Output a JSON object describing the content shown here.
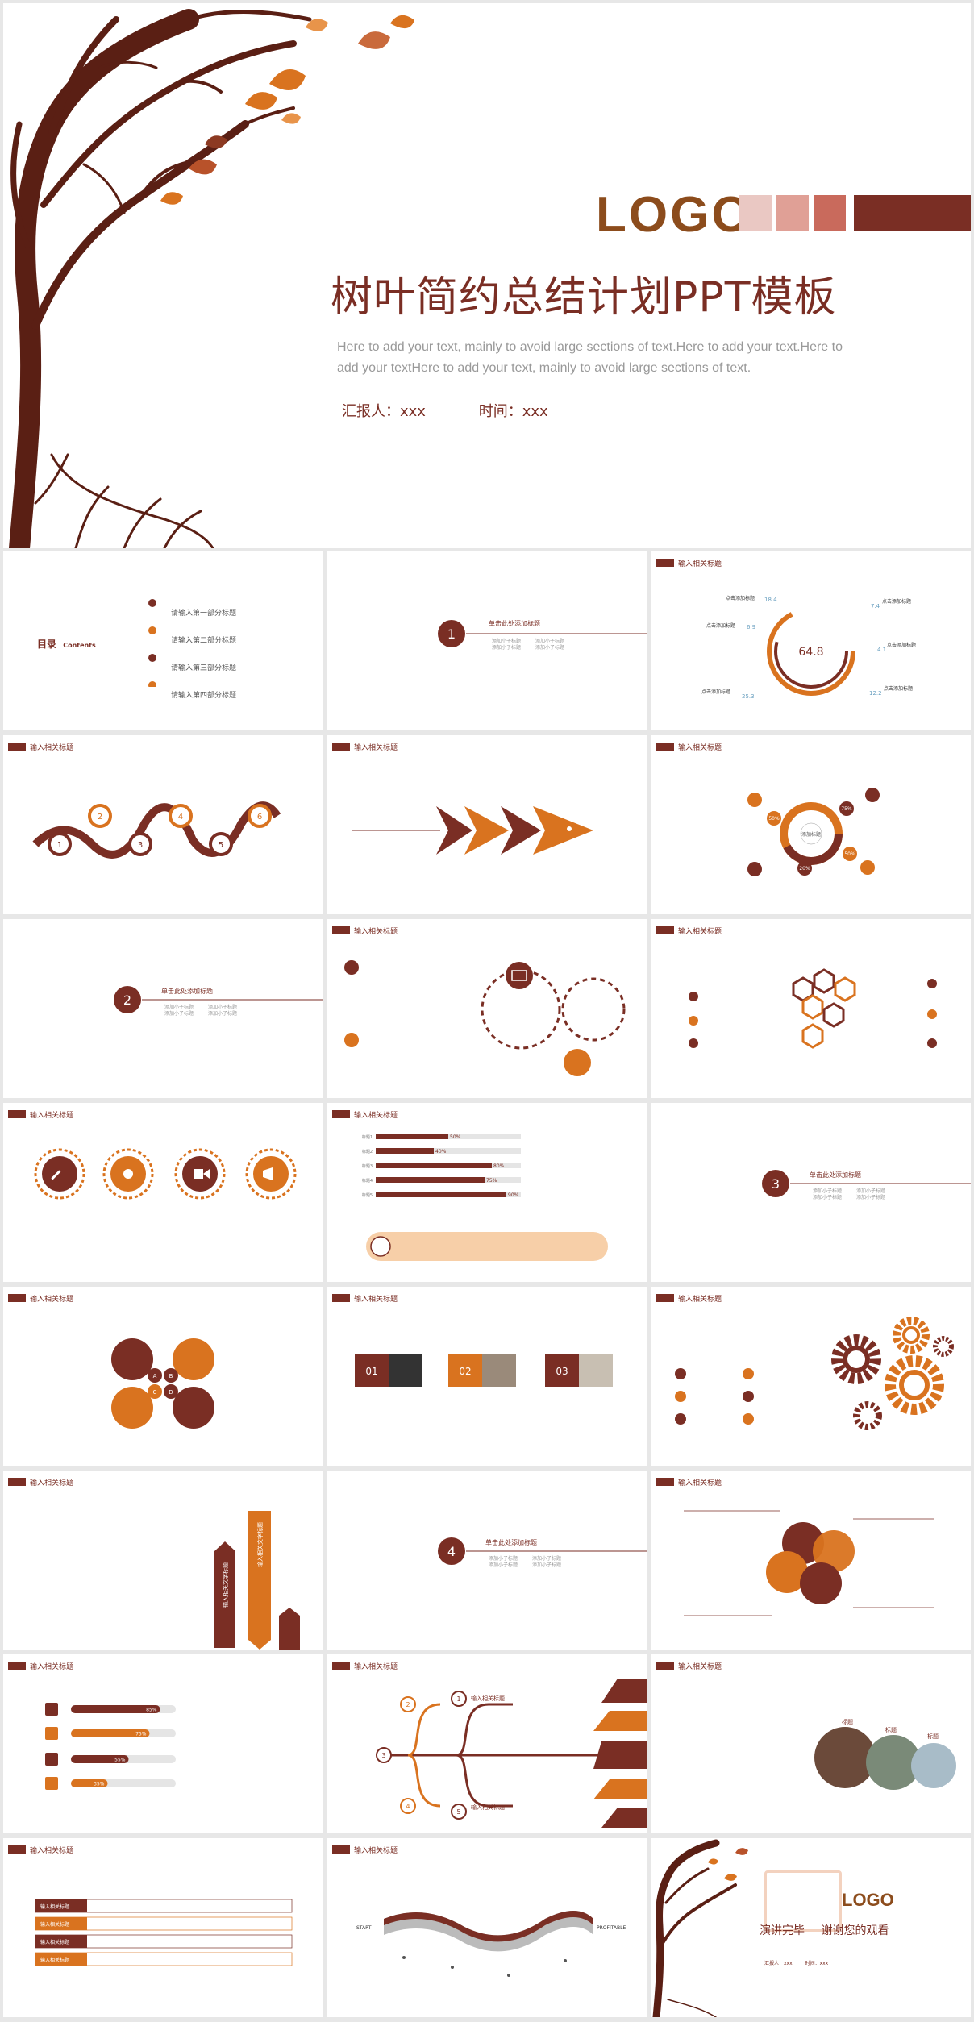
{
  "cover": {
    "logo": "LOGO",
    "title": "树叶简约总结计划PPT模板",
    "description": "Here to add your text, mainly to avoid large sections of text.Here to add your text.Here to add your textHere to add your text, mainly to avoid large sections of text.",
    "reporter": "汇报人：xxx",
    "time": "时间：xxx",
    "colors": {
      "brown": "#7a2e24",
      "orange": "#d9731f",
      "logo_text": "#8c4c1c",
      "squares": [
        "#eac8c3",
        "#e0a096",
        "#c96a5c"
      ]
    }
  },
  "toc": {
    "title": "目录",
    "subtitle": "Contents",
    "items": [
      "请输入第一部分标题",
      "请输入第二部分标题",
      "请输入第三部分标题",
      "请输入第四部分标题"
    ]
  },
  "section": {
    "title": "单击此处添加标题",
    "add_subtitle": "添加小子标题",
    "numbers": [
      "1",
      "2",
      "3",
      "4"
    ]
  },
  "slide_header": "输入相关标题",
  "ring": {
    "center": "64.8",
    "values": [
      "18.4",
      "6.9",
      "25.3",
      "7.4",
      "4.1",
      "12.2"
    ],
    "label": "点击添加标题"
  },
  "process_numbers": [
    "1",
    "2",
    "3",
    "4",
    "5",
    "6"
  ],
  "donut_pcts": [
    "50%",
    "75%",
    "50%",
    "20%"
  ],
  "donut_center": "添加标题",
  "bars": [
    {
      "label": "标题1",
      "value": 50
    },
    {
      "label": "标题2",
      "value": 40
    },
    {
      "label": "标题3",
      "value": 80
    },
    {
      "label": "标题4",
      "value": 75
    },
    {
      "label": "标题5",
      "value": 90
    }
  ],
  "abcd": [
    "A",
    "B",
    "C",
    "D"
  ],
  "venn_label": "添加标题",
  "photo_nums": [
    "01",
    "02",
    "03"
  ],
  "arrow_text": [
    "输入相关文字标题",
    "输入相关文字标题"
  ],
  "skill_bars": [
    85,
    75,
    55,
    35
  ],
  "skill_labels": [
    "85%",
    "75%",
    "55%",
    "35%"
  ],
  "branch_nums": [
    "1",
    "2",
    "3",
    "4",
    "5"
  ],
  "branch_label": "输入相关标题",
  "labels": [
    "标题",
    "标题",
    "标题"
  ],
  "table_label": "输入相关标题",
  "start": "START",
  "profitable": "PROFITABLE",
  "ending": {
    "title": "演讲完毕",
    "subtitle": "谢谢您的观看",
    "logo": "LOGO",
    "reporter": "汇报人：xxx",
    "time": "时间：xxx"
  }
}
